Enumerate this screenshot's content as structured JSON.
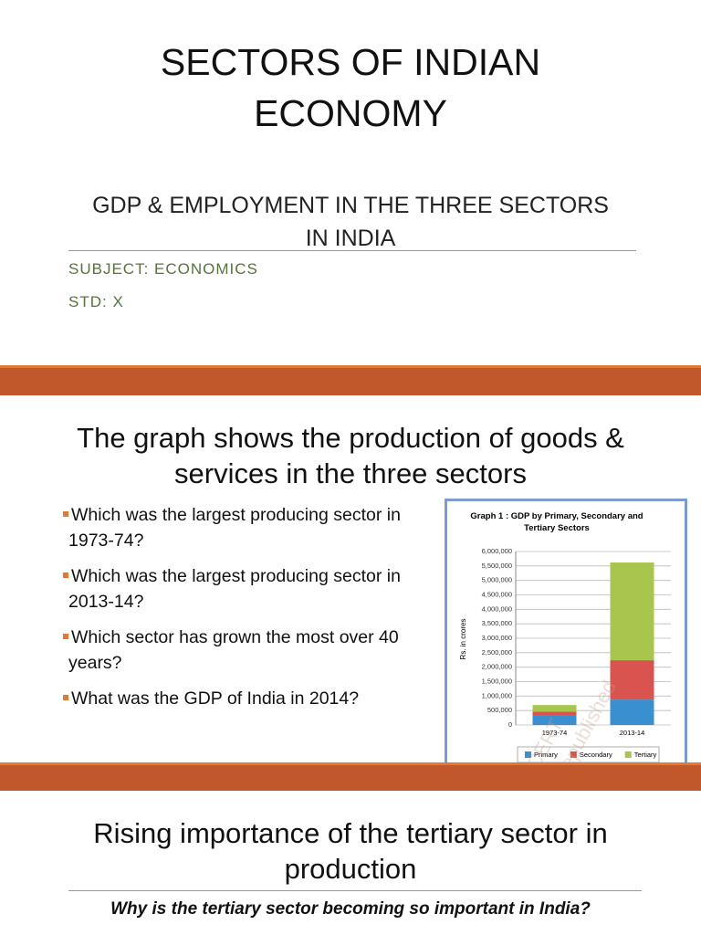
{
  "slides": [
    {
      "title": "SECTORS OF INDIAN ECONOMY",
      "subtitle": "GDP & EMPLOYMENT IN THE THREE SECTORS IN INDIA",
      "details": [
        "SUBJECT: ECONOMICS",
        "STD: X"
      ]
    },
    {
      "title": "The graph shows the production of goods & services in the three sectors",
      "bullets": [
        "Which was the largest producing sector in 1973-74?",
        "Which was the largest producing sector in 2013-14?",
        "Which sector has grown the most over 40 years?",
        "What was the GDP of India in 2014?"
      ]
    },
    {
      "title": "Rising importance of the tertiary sector in production",
      "question": "Why is the tertiary sector becoming so important in India?"
    }
  ],
  "chart_data": {
    "type": "bar",
    "stacked": true,
    "title": "Graph 1 : GDP by Primary, Secondary and Tertiary Sectors",
    "y_label": "Rs. in crores",
    "categories": [
      "1973-74",
      "2013-14"
    ],
    "series": [
      {
        "name": "Primary",
        "color": "#3a8fd0",
        "values": [
          330000,
          880000
        ]
      },
      {
        "name": "Secondary",
        "color": "#d9534f",
        "values": [
          130000,
          1360000
        ]
      },
      {
        "name": "Tertiary",
        "color": "#a8c64e",
        "values": [
          230000,
          3380000
        ]
      }
    ],
    "ylim": [
      0,
      6000000
    ],
    "yticks": [
      0,
      {
        "value": 500000,
        "label": "500,000"
      },
      {
        "value": 1000000,
        "label": "1,000,000"
      },
      {
        "value": 1500000,
        "label": "1,500,000"
      },
      {
        "value": 2000000,
        "label": "2,000,000"
      },
      {
        "value": 2500000,
        "label": "2,500,000"
      },
      {
        "value": 3000000,
        "label": "3,000,000"
      },
      {
        "value": 3500000,
        "label": "3,500,000"
      },
      {
        "value": 4000000,
        "label": "4,000,000"
      },
      {
        "value": 4500000,
        "label": "4,500,000"
      },
      {
        "value": 5000000,
        "label": "5,000,000"
      },
      {
        "value": 5500000,
        "label": "5,500,000"
      },
      {
        "value": 6000000,
        "label": "6,000,000"
      }
    ],
    "grid": true,
    "legend": "bottom",
    "watermark": [
      "NCERT",
      "republished"
    ]
  }
}
